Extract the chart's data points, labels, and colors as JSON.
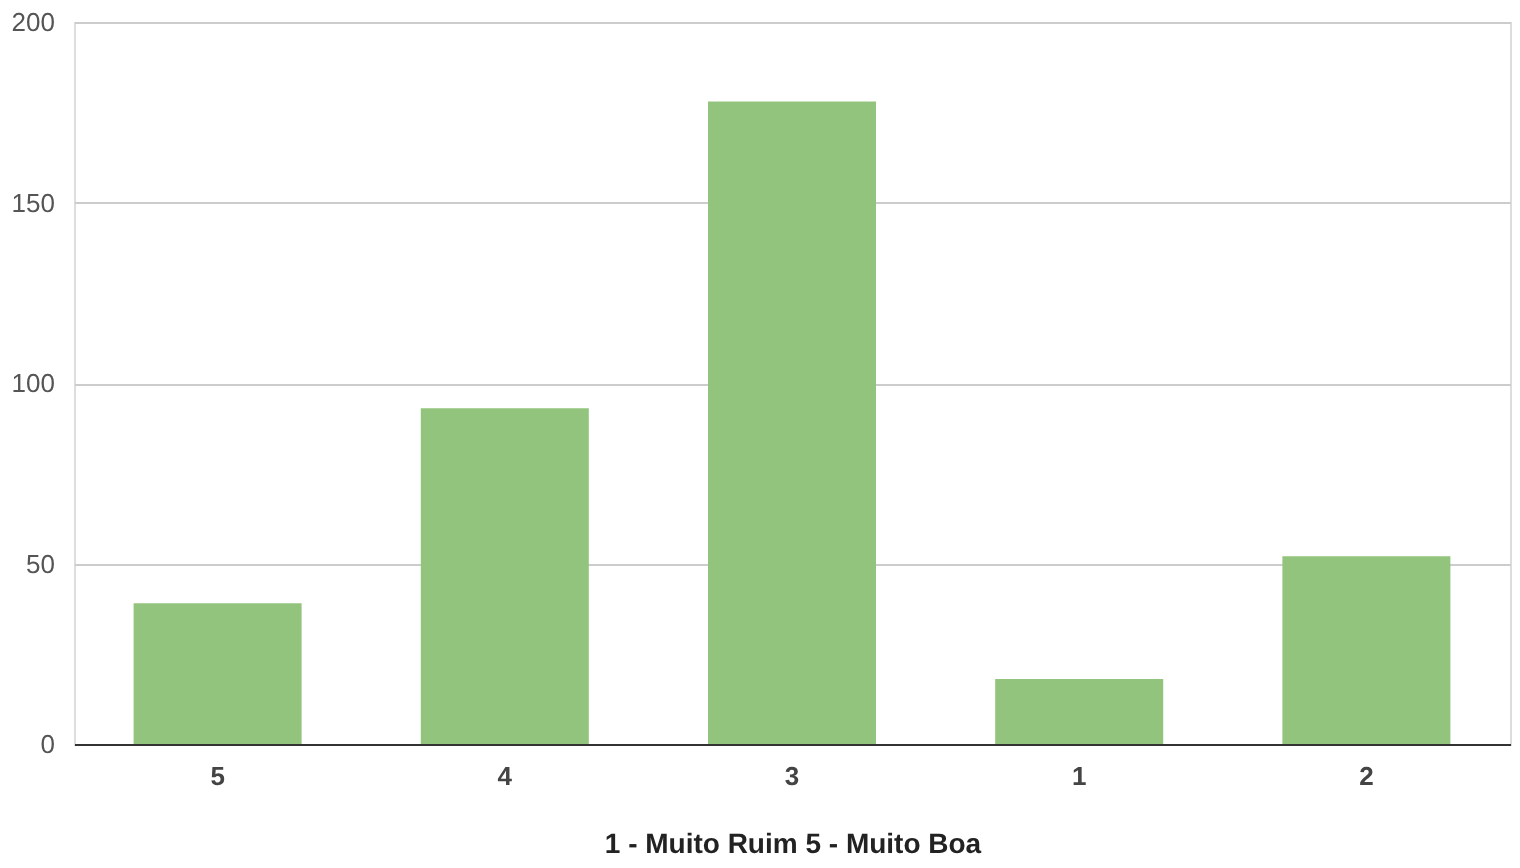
{
  "chart_data": {
    "type": "bar",
    "xlabel": "1 - Muito Ruim 5 - Muito Boa",
    "categories": [
      "5",
      "4",
      "3",
      "1",
      "2"
    ],
    "values": [
      39,
      93,
      178,
      18,
      52
    ],
    "color": "#93c47d",
    "ylim": [
      0,
      200
    ],
    "yticks": [
      0,
      50,
      100,
      150,
      200
    ],
    "grid": "y"
  }
}
